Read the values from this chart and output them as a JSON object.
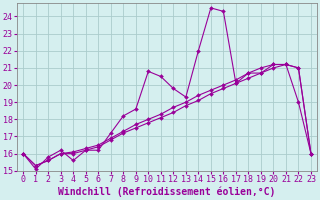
{
  "xlabel": "Windchill (Refroidissement éolien,°C)",
  "x": [
    0,
    1,
    2,
    3,
    4,
    5,
    6,
    7,
    8,
    9,
    10,
    11,
    12,
    13,
    14,
    15,
    16,
    17,
    18,
    19,
    20,
    21,
    22,
    23
  ],
  "series1": [
    16.0,
    15.1,
    15.8,
    16.2,
    15.6,
    16.2,
    16.2,
    17.2,
    18.2,
    18.6,
    20.8,
    20.5,
    19.8,
    19.3,
    22.0,
    24.5,
    24.3,
    20.1,
    20.7,
    20.7,
    21.2,
    21.2,
    19.0,
    16.0
  ],
  "series2": [
    16.0,
    15.3,
    15.6,
    16.0,
    16.0,
    16.2,
    16.4,
    16.8,
    17.2,
    17.5,
    17.8,
    18.1,
    18.4,
    18.8,
    19.1,
    19.5,
    19.8,
    20.1,
    20.4,
    20.7,
    21.0,
    21.2,
    21.0,
    16.0
  ],
  "series3": [
    16.0,
    15.3,
    15.6,
    16.0,
    16.1,
    16.3,
    16.5,
    16.9,
    17.3,
    17.7,
    18.0,
    18.3,
    18.7,
    19.0,
    19.4,
    19.7,
    20.0,
    20.3,
    20.7,
    21.0,
    21.2,
    21.2,
    21.0,
    16.0
  ],
  "line_color": "#990099",
  "marker": "D",
  "markersize": 2,
  "linewidth": 0.8,
  "bg_color": "#d5efef",
  "grid_color": "#aacccc",
  "ylim": [
    15,
    24.8
  ],
  "yticks": [
    15,
    16,
    17,
    18,
    19,
    20,
    21,
    22,
    23,
    24
  ],
  "xticks": [
    0,
    1,
    2,
    3,
    4,
    5,
    6,
    7,
    8,
    9,
    10,
    11,
    12,
    13,
    14,
    15,
    16,
    17,
    18,
    19,
    20,
    21,
    22,
    23
  ],
  "tick_fontsize": 6,
  "xlabel_fontsize": 7
}
